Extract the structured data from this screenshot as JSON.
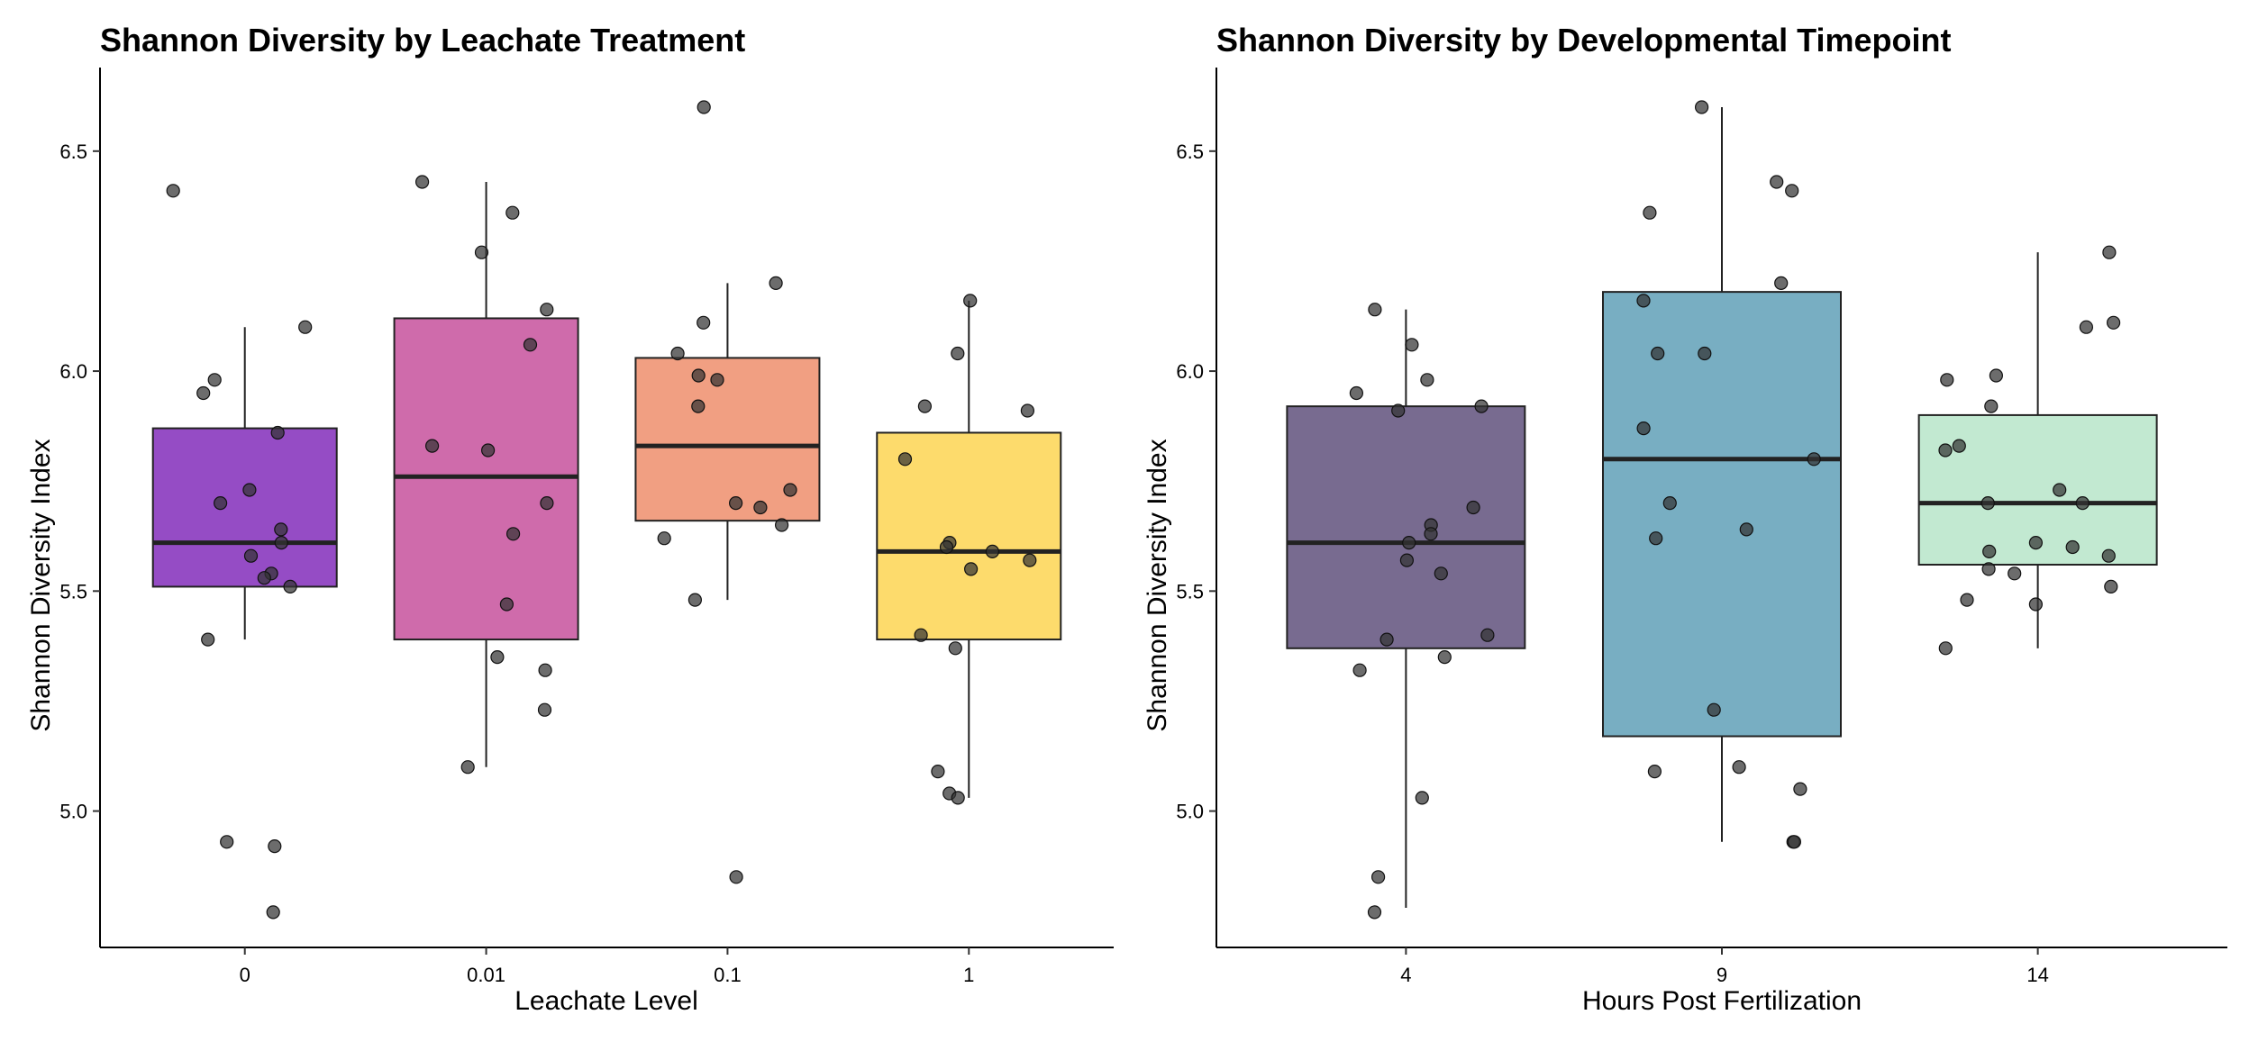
{
  "chart_data": [
    {
      "type": "box",
      "title": "Shannon Diversity by Leachate Treatment",
      "xlabel": "Leachate Level",
      "ylabel": "Shannon Diversity Index",
      "ylim": [
        4.69,
        6.69
      ],
      "yticks": [
        "5.0",
        "5.5",
        "6.0",
        "6.5"
      ],
      "grid": false,
      "legend": "none",
      "categories": [
        "0",
        "0.01",
        "0.1",
        "1"
      ],
      "boxes": [
        {
          "category": "0",
          "color": "#7E24B8",
          "whisker_low": 5.39,
          "q1": 5.51,
          "median": 5.61,
          "q3": 5.87,
          "whisker_high": 6.1
        },
        {
          "category": "0.01",
          "color": "#C44A98",
          "whisker_low": 5.1,
          "q1": 5.39,
          "median": 5.76,
          "q3": 6.12,
          "whisker_high": 6.43
        },
        {
          "category": "0.1",
          "color": "#EE8A67",
          "whisker_low": 5.48,
          "q1": 5.66,
          "median": 5.83,
          "q3": 6.03,
          "whisker_high": 6.2
        },
        {
          "category": "1",
          "color": "#FCD34C",
          "whisker_low": 5.03,
          "q1": 5.39,
          "median": 5.59,
          "q3": 5.86,
          "whisker_high": 6.16
        }
      ],
      "points": [
        {
          "category": "0",
          "values": [
            6.41,
            6.1,
            5.98,
            5.95,
            5.86,
            5.73,
            5.7,
            5.64,
            5.61,
            5.58,
            5.54,
            5.53,
            5.51,
            5.39,
            4.93,
            4.92,
            4.77
          ]
        },
        {
          "category": "0.01",
          "values": [
            6.43,
            6.36,
            6.27,
            6.14,
            6.06,
            5.83,
            5.82,
            5.7,
            5.63,
            5.47,
            5.35,
            5.32,
            5.23,
            5.1
          ]
        },
        {
          "category": "0.1",
          "values": [
            6.6,
            6.2,
            6.11,
            6.04,
            5.99,
            5.98,
            5.92,
            5.73,
            5.7,
            5.69,
            5.65,
            5.62,
            5.48,
            4.85
          ]
        },
        {
          "category": "1",
          "values": [
            6.16,
            6.04,
            5.92,
            5.91,
            5.8,
            5.61,
            5.6,
            5.59,
            5.57,
            5.55,
            5.4,
            5.37,
            5.09,
            5.04,
            5.03
          ]
        }
      ]
    },
    {
      "type": "box",
      "title": "Shannon Diversity by Developmental Timepoint",
      "xlabel": "Hours Post Fertilization",
      "ylabel": "Shannon Diversity Index",
      "ylim": [
        4.69,
        6.69
      ],
      "yticks": [
        "5.0",
        "5.5",
        "6.0",
        "6.5"
      ],
      "grid": false,
      "legend": "none",
      "categories": [
        "4",
        "9",
        "14"
      ],
      "boxes": [
        {
          "category": "4",
          "color": "#5A4A78",
          "whisker_low": 4.78,
          "q1": 5.37,
          "median": 5.61,
          "q3": 5.92,
          "whisker_high": 6.14
        },
        {
          "category": "9",
          "color": "#5A9CB5",
          "whisker_low": 4.93,
          "q1": 5.17,
          "median": 5.8,
          "q3": 6.18,
          "whisker_high": 6.6
        },
        {
          "category": "14",
          "color": "#B4E4C7",
          "whisker_low": 5.37,
          "q1": 5.56,
          "median": 5.7,
          "q3": 5.9,
          "whisker_high": 6.27
        }
      ],
      "points": [
        {
          "category": "4",
          "values": [
            6.14,
            6.06,
            5.98,
            5.95,
            5.92,
            5.91,
            5.69,
            5.65,
            5.63,
            5.61,
            5.57,
            5.54,
            5.4,
            5.39,
            5.35,
            5.32,
            5.03,
            4.85,
            4.77
          ]
        },
        {
          "category": "9",
          "values": [
            6.6,
            6.43,
            6.41,
            6.36,
            6.2,
            6.16,
            6.04,
            6.04,
            5.87,
            5.8,
            5.7,
            5.64,
            5.62,
            5.23,
            5.1,
            5.09,
            5.05,
            4.93,
            4.93
          ]
        },
        {
          "category": "14",
          "values": [
            6.27,
            6.11,
            6.1,
            5.99,
            5.98,
            5.92,
            5.83,
            5.82,
            5.73,
            5.7,
            5.7,
            5.61,
            5.6,
            5.59,
            5.58,
            5.55,
            5.54,
            5.51,
            5.48,
            5.47,
            5.37
          ]
        }
      ]
    }
  ]
}
